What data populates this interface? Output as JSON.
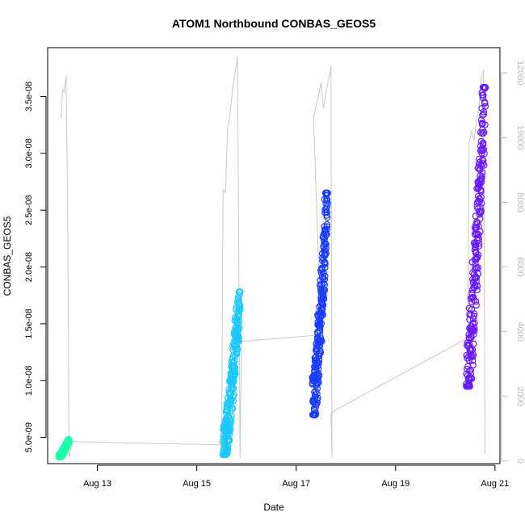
{
  "chart_data": {
    "type": "scatter",
    "title": "ATOM1 Northbound CONBAS_GEOS5",
    "xlabel": "Date",
    "ylabel": "CONBAS_GEOS5",
    "x_ticks": [
      {
        "day": 13,
        "label": "Aug 13"
      },
      {
        "day": 15,
        "label": "Aug 15"
      },
      {
        "day": 17,
        "label": "Aug 17"
      },
      {
        "day": 19,
        "label": "Aug 19"
      },
      {
        "day": 21,
        "label": "Aug 21"
      }
    ],
    "y_ticks": [
      {
        "value": 5e-09,
        "label": "5.0e-09"
      },
      {
        "value": 1e-08,
        "label": "1.0e-08"
      },
      {
        "value": 1.5e-08,
        "label": "1.5e-08"
      },
      {
        "value": 2e-08,
        "label": "2.0e-08"
      },
      {
        "value": 2.5e-08,
        "label": "2.5e-08"
      },
      {
        "value": 3e-08,
        "label": "3.0e-08"
      },
      {
        "value": 3.5e-08,
        "label": "3.5e-08"
      }
    ],
    "y2_ticks": [
      {
        "value": 0,
        "label": "0"
      },
      {
        "value": 2000,
        "label": "2000"
      },
      {
        "value": 4000,
        "label": "4000"
      },
      {
        "value": 6000,
        "label": "6000"
      },
      {
        "value": 8000,
        "label": "8000"
      },
      {
        "value": 10000,
        "label": "10000"
      },
      {
        "value": 12000,
        "label": "12000"
      }
    ],
    "xlim": [
      12.0,
      21.1
    ],
    "ylim": [
      2.7e-09,
      3.93e-08
    ],
    "y2lim": [
      -80,
      12780
    ],
    "colors": {
      "altitude_line": "#c8c8c8",
      "axis": "#000000",
      "right_axis": "#bdbdbd"
    },
    "clusters": [
      {
        "color": "#1affaa",
        "x_range": [
          12.23,
          12.43
        ],
        "y_range": [
          3.3e-09,
          4.8e-09
        ]
      },
      {
        "color": "#1ac9ff",
        "x_range": [
          15.53,
          15.87
        ],
        "y_range": [
          3.5e-09,
          1.78e-08
        ]
      },
      {
        "color": "#1a3cff",
        "x_range": [
          17.33,
          17.63
        ],
        "y_range": [
          7e-09,
          2.65e-08
        ]
      },
      {
        "color": "#6a1aff",
        "x_range": [
          20.43,
          20.8
        ],
        "y_range": [
          9.5e-09,
          3.58e-08
        ]
      }
    ],
    "altitude_series": [
      {
        "x": 12.27,
        "y": 10600
      },
      {
        "x": 12.3,
        "y": 11500
      },
      {
        "x": 12.33,
        "y": 11400
      },
      {
        "x": 12.37,
        "y": 11900
      },
      {
        "x": 12.4,
        "y": 8200
      },
      {
        "x": 12.43,
        "y": 100
      },
      {
        "x": 12.5,
        "y": 600
      },
      {
        "x": 15.5,
        "y": 500
      },
      {
        "x": 15.53,
        "y": 8400
      },
      {
        "x": 15.58,
        "y": 8300
      },
      {
        "x": 15.62,
        "y": 10300
      },
      {
        "x": 15.67,
        "y": 10700
      },
      {
        "x": 15.72,
        "y": 11500
      },
      {
        "x": 15.77,
        "y": 12000
      },
      {
        "x": 15.82,
        "y": 12500
      },
      {
        "x": 15.87,
        "y": 100
      },
      {
        "x": 15.9,
        "y": 3700
      },
      {
        "x": 17.5,
        "y": 3900
      },
      {
        "x": 17.35,
        "y": 10600
      },
      {
        "x": 17.4,
        "y": 11000
      },
      {
        "x": 17.45,
        "y": 11300
      },
      {
        "x": 17.5,
        "y": 11700
      },
      {
        "x": 17.55,
        "y": 10900
      },
      {
        "x": 17.6,
        "y": 11400
      },
      {
        "x": 17.65,
        "y": 11800
      },
      {
        "x": 17.7,
        "y": 12200
      },
      {
        "x": 17.72,
        "y": 100
      },
      {
        "x": 17.7,
        "y": 1500
      },
      {
        "x": 20.45,
        "y": 3800
      },
      {
        "x": 20.48,
        "y": 9800
      },
      {
        "x": 20.53,
        "y": 10200
      },
      {
        "x": 20.58,
        "y": 9900
      },
      {
        "x": 20.63,
        "y": 10600
      },
      {
        "x": 20.68,
        "y": 10900
      },
      {
        "x": 20.72,
        "y": 11800
      },
      {
        "x": 20.77,
        "y": 12100
      },
      {
        "x": 20.8,
        "y": 200
      }
    ]
  }
}
